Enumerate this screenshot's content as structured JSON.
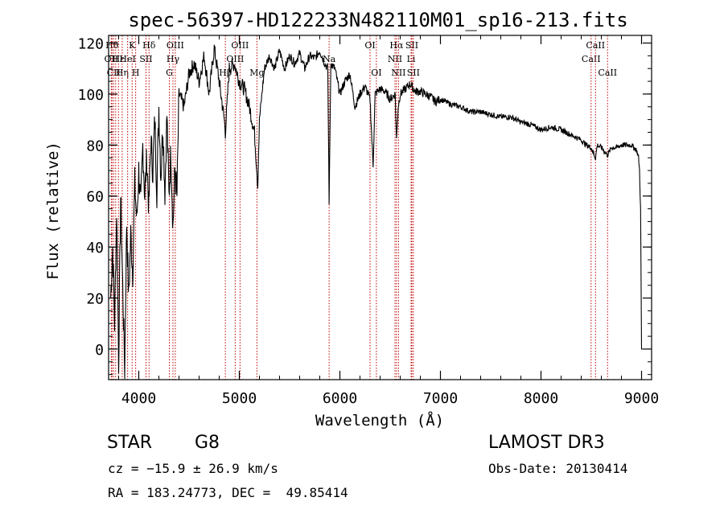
{
  "chart_data": {
    "type": "line",
    "title": "spec-56397-HD122233N482110M01_sp16-213.fits",
    "xlabel": "Wavelength (Å)",
    "ylabel": "Flux (relative)",
    "xlim": [
      3700,
      9100
    ],
    "ylim": [
      -12,
      123
    ],
    "x_ticks": [
      4000,
      5000,
      6000,
      7000,
      8000,
      9000
    ],
    "y_ticks": [
      0,
      20,
      40,
      60,
      80,
      100,
      120
    ],
    "grid": false,
    "series": [
      {
        "name": "spectrum",
        "x": [
          3720,
          3740,
          3760,
          3780,
          3800,
          3820,
          3840,
          3860,
          3880,
          3900,
          3920,
          3940,
          3960,
          3980,
          4000,
          4020,
          4040,
          4060,
          4080,
          4100,
          4120,
          4140,
          4160,
          4180,
          4200,
          4220,
          4240,
          4260,
          4280,
          4300,
          4320,
          4340,
          4360,
          4380,
          4400,
          4450,
          4500,
          4550,
          4600,
          4650,
          4700,
          4750,
          4800,
          4850,
          4861,
          4900,
          4950,
          5000,
          5050,
          5100,
          5150,
          5175,
          5183,
          5200,
          5250,
          5300,
          5350,
          5400,
          5450,
          5500,
          5550,
          5600,
          5650,
          5700,
          5750,
          5800,
          5850,
          5880,
          5893,
          5910,
          5950,
          6000,
          6050,
          6100,
          6150,
          6200,
          6250,
          6300,
          6330,
          6350,
          6400,
          6450,
          6500,
          6550,
          6563,
          6580,
          6600,
          6650,
          6700,
          6750,
          6800,
          6850,
          6900,
          6950,
          7000,
          7100,
          7200,
          7300,
          7400,
          7500,
          7600,
          7700,
          7800,
          7900,
          8000,
          8100,
          8200,
          8300,
          8400,
          8450,
          8498,
          8520,
          8542,
          8560,
          8600,
          8662,
          8700,
          8750,
          8800,
          8850,
          8900,
          8950,
          8970,
          8980,
          8990,
          9000
        ],
        "y": [
          20,
          40,
          10,
          55,
          -5,
          60,
          25,
          -8,
          50,
          20,
          45,
          30,
          65,
          50,
          70,
          55,
          80,
          60,
          75,
          55,
          82,
          70,
          90,
          62,
          95,
          68,
          88,
          62,
          92,
          60,
          78,
          48,
          70,
          60,
          100,
          95,
          108,
          112,
          105,
          115,
          100,
          118,
          105,
          90,
          85,
          110,
          112,
          105,
          102,
          95,
          85,
          70,
          64,
          90,
          110,
          115,
          110,
          117,
          110,
          115,
          112,
          116,
          110,
          115,
          114,
          117,
          112,
          110,
          58,
          112,
          110,
          100,
          105,
          108,
          95,
          100,
          103,
          98,
          72,
          100,
          102,
          101,
          98,
          100,
          82,
          95,
          100,
          102,
          104,
          101,
          101,
          100,
          99,
          97,
          98,
          96,
          95,
          93,
          93,
          92,
          91,
          91,
          89,
          88,
          86,
          87,
          86,
          84,
          82,
          80,
          79,
          77,
          75,
          80,
          79,
          76,
          79,
          79,
          80,
          80,
          80,
          78,
          75,
          70,
          55,
          0
        ]
      }
    ],
    "line_markers": [
      {
        "wavelength": 3734,
        "row": 0,
        "label": "Hθ"
      },
      {
        "wavelength": 3727,
        "row": 1,
        "label": "OII"
      },
      {
        "wavelength": 3750,
        "row": 2,
        "label": "CII"
      },
      {
        "wavelength": 3770,
        "row": 3,
        "label": ""
      },
      {
        "wavelength": 3798,
        "row": 1,
        "label": "Hε"
      },
      {
        "wavelength": 3835,
        "row": 2,
        "label": "Hη"
      },
      {
        "wavelength": 3889,
        "row": 1,
        "label": "HeI"
      },
      {
        "wavelength": 3934,
        "row": 0,
        "label": "K"
      },
      {
        "wavelength": 3969,
        "row": 2,
        "label": "H"
      },
      {
        "wavelength": 4072,
        "row": 1,
        "label": "SII"
      },
      {
        "wavelength": 4102,
        "row": 0,
        "label": "Hδ"
      },
      {
        "wavelength": 4304,
        "row": 2,
        "label": "G"
      },
      {
        "wavelength": 4340,
        "row": 1,
        "label": "Hγ"
      },
      {
        "wavelength": 4363,
        "row": 0,
        "label": "OIII"
      },
      {
        "wavelength": 4861,
        "row": 2,
        "label": "Hβ"
      },
      {
        "wavelength": 4959,
        "row": 1,
        "label": "OIII"
      },
      {
        "wavelength": 5007,
        "row": 0,
        "label": "OIII"
      },
      {
        "wavelength": 5175,
        "row": 2,
        "label": "Mg"
      },
      {
        "wavelength": 5893,
        "row": 1,
        "label": "Na"
      },
      {
        "wavelength": 6300,
        "row": 0,
        "label": "OI"
      },
      {
        "wavelength": 6363,
        "row": 2,
        "label": "OI"
      },
      {
        "wavelength": 6548,
        "row": 1,
        "label": "NII"
      },
      {
        "wavelength": 6563,
        "row": 0,
        "label": "Hα"
      },
      {
        "wavelength": 6583,
        "row": 2,
        "label": "NII"
      },
      {
        "wavelength": 6708,
        "row": 1,
        "label": "Li"
      },
      {
        "wavelength": 6716,
        "row": 0,
        "label": "SII"
      },
      {
        "wavelength": 6731,
        "row": 2,
        "label": "SII"
      },
      {
        "wavelength": 8498,
        "row": 1,
        "label": "CaII"
      },
      {
        "wavelength": 8542,
        "row": 0,
        "label": "CaII"
      },
      {
        "wavelength": 8662,
        "row": 2,
        "label": "CaII"
      }
    ]
  },
  "info": {
    "class": "STAR",
    "subclass": "G8",
    "survey": "LAMOST DR3",
    "redshift": "cz = −15.9 ± 26.9 km/s",
    "obs_date": "Obs-Date: 20130414",
    "coords": "RA = 183.24773, DEC =  49.85414"
  },
  "colors": {
    "axis": "#000000",
    "spectrum": "#000000",
    "marker": "#c00000"
  }
}
